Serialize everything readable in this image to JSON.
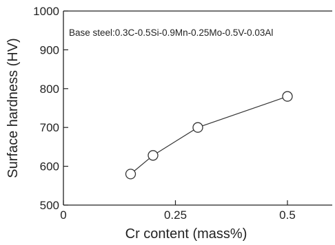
{
  "chart_data": {
    "type": "line",
    "title": "",
    "xlabel": "Cr  content   (mass%)",
    "ylabel": "Surface hardness (HV)",
    "annotation": "Base steel:0.3C-0.5Si-0.9Mn-0.25Mo-0.5V-0.03Al",
    "xlim": [
      0,
      0.6
    ],
    "ylim": [
      500,
      1000
    ],
    "x_ticks": [
      0,
      0.25,
      0.5
    ],
    "x_tick_labels": [
      "0",
      "0.25",
      "0.5"
    ],
    "y_ticks": [
      500,
      600,
      700,
      800,
      900,
      1000
    ],
    "y_tick_labels": [
      "500",
      "600",
      "700",
      "800",
      "900",
      "1000"
    ],
    "grid": false,
    "marker": "open-circle",
    "series": [
      {
        "x": [
          0.15,
          0.2,
          0.3,
          0.5
        ],
        "y": [
          580,
          628,
          700,
          780
        ]
      }
    ],
    "colors": {
      "line": "#333333",
      "marker_fill": "#ffffff",
      "frame": "#222222"
    }
  }
}
